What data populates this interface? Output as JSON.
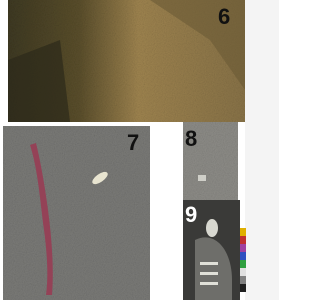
{
  "panels": [
    {
      "label": "6"
    },
    {
      "label": "7"
    },
    {
      "label": "8"
    },
    {
      "label": "9"
    }
  ]
}
